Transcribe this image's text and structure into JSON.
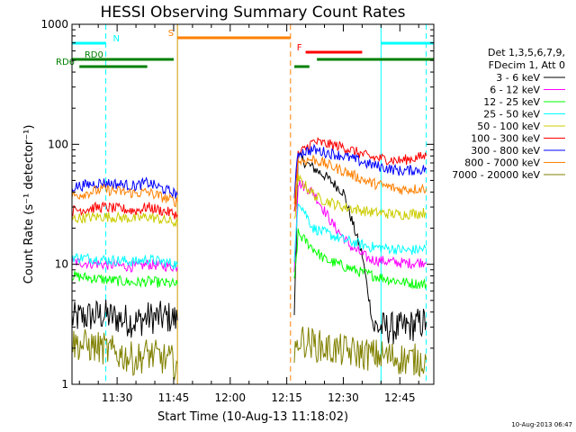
{
  "chart_data": {
    "type": "line",
    "title": "HESSI Observing Summary Count Rates",
    "xlabel": "Start Time (10-Aug-13 11:18:02)",
    "ylabel": "Count Rate (s⁻¹ detector⁻¹)",
    "y_scale": "log",
    "ylim": [
      1,
      1000
    ],
    "xlim": [
      "11:18:02",
      "12:54:00"
    ],
    "x_ticks": [
      "11:30",
      "11:45",
      "12:00",
      "12:15",
      "12:30",
      "12:45"
    ],
    "y_ticks": [
      "1",
      "10",
      "100",
      "1000"
    ],
    "grid": false,
    "legend_position": "right",
    "legend_header": [
      "Det 1,3,5,6,7,9,",
      "FDecim 1, Att 0"
    ],
    "series": [
      {
        "name": "3 - 6 keV",
        "color": "#000000",
        "x": [
          "11:18",
          "11:20",
          "11:26",
          "11:35",
          "11:38",
          "11:44",
          "11:46",
          "12:17",
          "12:18",
          "12:20",
          "12:25",
          "12:30",
          "12:35",
          "12:38",
          "12:45",
          "12:50",
          "12:52"
        ],
        "values": [
          3.5,
          3.6,
          3.8,
          3.3,
          3.6,
          3.6,
          3.4,
          4.0,
          80,
          70,
          55,
          40,
          12,
          3.0,
          2.9,
          3.2,
          3.3
        ]
      },
      {
        "name": "6 - 12 keV",
        "color": "#ff00ff",
        "x": [
          "11:18",
          "11:26",
          "11:35",
          "11:38",
          "11:46",
          "12:17",
          "12:18",
          "12:22",
          "12:27",
          "12:32",
          "12:37",
          "12:42",
          "12:47",
          "12:52"
        ],
        "values": [
          10.5,
          10.0,
          9.5,
          10.0,
          9.5,
          9.0,
          48,
          40,
          22,
          14,
          11,
          10.5,
          10.2,
          10.5
        ]
      },
      {
        "name": "12 - 25 keV",
        "color": "#00ff00",
        "x": [
          "11:18",
          "11:26",
          "11:35",
          "11:38",
          "11:46",
          "12:17",
          "12:18",
          "12:25",
          "12:35",
          "12:42",
          "12:47",
          "12:52"
        ],
        "values": [
          8.0,
          7.5,
          7.0,
          7.2,
          6.8,
          7.0,
          18,
          11,
          8.5,
          7.5,
          7.0,
          6.8
        ]
      },
      {
        "name": "25 - 50 keV",
        "color": "#00ffff",
        "x": [
          "11:18",
          "11:26",
          "11:35",
          "11:38",
          "11:46",
          "12:17",
          "12:18",
          "12:22",
          "12:30",
          "12:37",
          "12:43",
          "12:47",
          "12:52"
        ],
        "values": [
          11.5,
          11.0,
          10.5,
          11.0,
          10.0,
          10.0,
          35,
          20,
          16,
          14,
          13.5,
          13.0,
          13.5
        ]
      },
      {
        "name": "50 - 100 keV",
        "color": "#cccc00",
        "x": [
          "11:18",
          "11:26",
          "11:35",
          "11:38",
          "11:46",
          "12:17",
          "12:18",
          "12:23",
          "12:30",
          "12:38",
          "12:45",
          "12:52"
        ],
        "values": [
          24,
          25,
          24,
          25,
          22,
          22,
          52,
          36,
          30,
          27,
          26,
          27
        ]
      },
      {
        "name": "100 - 300 keV",
        "color": "#ff0000",
        "x": [
          "11:18",
          "11:26",
          "11:35",
          "11:38",
          "11:46",
          "12:17",
          "12:18",
          "12:22",
          "12:30",
          "12:37",
          "12:45",
          "12:52"
        ],
        "values": [
          28,
          30,
          28,
          30,
          26,
          26,
          82,
          105,
          95,
          78,
          73,
          80
        ]
      },
      {
        "name": "300 - 800 keV",
        "color": "#0000ff",
        "x": [
          "11:18",
          "11:26",
          "11:35",
          "11:38",
          "11:46",
          "12:17",
          "12:18",
          "12:22",
          "12:30",
          "12:37",
          "12:45",
          "12:52"
        ],
        "values": [
          44,
          48,
          45,
          48,
          38,
          38,
          85,
          90,
          80,
          68,
          60,
          62
        ]
      },
      {
        "name": "800 - 7000 keV",
        "color": "#ff8000",
        "x": [
          "11:18",
          "11:26",
          "11:35",
          "11:38",
          "11:46",
          "12:17",
          "12:18",
          "12:22",
          "12:30",
          "12:37",
          "12:45",
          "12:52"
        ],
        "values": [
          37,
          42,
          39,
          40,
          33,
          33,
          72,
          75,
          60,
          48,
          42,
          43
        ]
      },
      {
        "name": "7000 - 20000 keV",
        "color": "#808000",
        "x": [
          "11:18",
          "11:26",
          "11:35",
          "11:38",
          "11:46",
          "12:17",
          "12:18",
          "12:25",
          "12:35",
          "12:42",
          "12:47",
          "12:52"
        ],
        "values": [
          2.2,
          2.0,
          1.6,
          1.8,
          1.5,
          1.5,
          2.4,
          2.0,
          1.8,
          1.7,
          1.6,
          1.6
        ]
      }
    ],
    "annotations": [
      {
        "label": "N",
        "color": "#00ffff",
        "intervals": [
          [
            "11:18",
            "11:27"
          ],
          [
            "12:40",
            "12:54"
          ]
        ]
      },
      {
        "label": "S",
        "color": "#ff8000",
        "intervals": [
          [
            "11:46",
            "12:16"
          ]
        ]
      },
      {
        "label": "F",
        "color": "#ff0000",
        "intervals": [
          [
            "12:20",
            "12:35"
          ]
        ]
      },
      {
        "label": "RD0",
        "color": "#008000",
        "intervals": [
          [
            "11:18",
            "11:45"
          ],
          [
            "12:23",
            "12:54"
          ]
        ]
      },
      {
        "label": "RD6",
        "color": "#008000",
        "intervals": [
          [
            "11:20",
            "11:38"
          ],
          [
            "12:17",
            "12:21"
          ]
        ]
      }
    ],
    "vertical_markers": [
      {
        "x": "11:27",
        "color": "#00ffff",
        "style": "dashed"
      },
      {
        "x": "11:46",
        "color": "#cc9900",
        "style": "solid"
      },
      {
        "x": "12:16",
        "color": "#ff8000",
        "style": "dashed"
      },
      {
        "x": "12:40",
        "color": "#00ffff",
        "style": "solid"
      },
      {
        "x": "12:52",
        "color": "#00ffff",
        "style": "dashed"
      }
    ],
    "footer_stamp": "10-Aug-2013 06:47"
  }
}
